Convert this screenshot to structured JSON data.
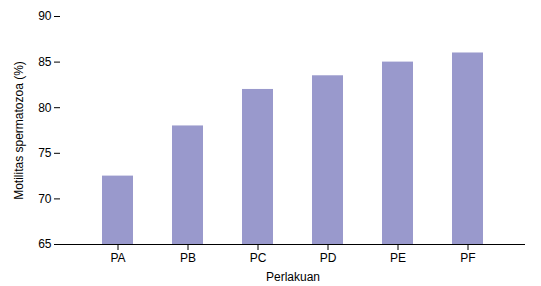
{
  "chart_data": {
    "type": "bar",
    "categories": [
      "PA",
      "PB",
      "PC",
      "PD",
      "PE",
      "PF"
    ],
    "values": [
      72.5,
      78.0,
      82.0,
      83.5,
      85.0,
      86.0
    ],
    "color": "#9999cc",
    "xlabel": "Perlakuan",
    "ylabel": "Motilitas spermatozoa (%)",
    "ylim": [
      65,
      90
    ],
    "yticks": [
      65,
      70,
      75,
      80,
      85,
      90
    ],
    "grid": false
  }
}
